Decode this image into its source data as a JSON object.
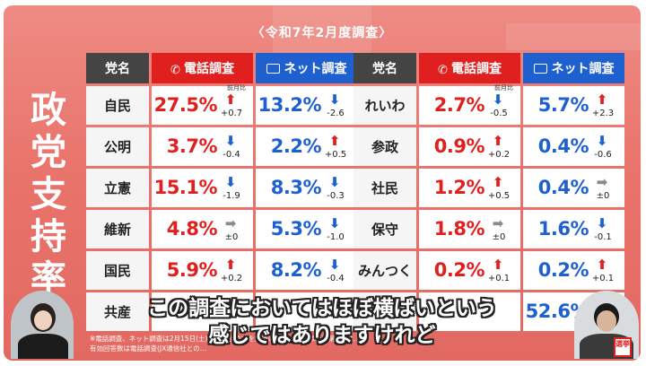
{
  "survey_date": "〈令和7年2月度調査〉",
  "vertical_title": [
    "政",
    "党",
    "支",
    "持",
    "率"
  ],
  "headers": {
    "party": "党名",
    "phone": "電話調査",
    "net": "ネット調査"
  },
  "icons": {
    "phone": "phone-icon",
    "net": "smartphone-icon",
    "up": "arrow-up-icon",
    "down": "arrow-down-icon",
    "flat": "arrow-right-icon"
  },
  "colors": {
    "phone": "#e0201f",
    "net": "#1f60d0",
    "flat": "#8a8a8a",
    "background": "#e9746c"
  },
  "prev_month_label": "前月比",
  "left_table": [
    {
      "party": "自民",
      "phone": {
        "value": "27.5%",
        "trend": "up",
        "change": "+0.7"
      },
      "net": {
        "value": "13.2%",
        "trend": "down",
        "change": "-2.6"
      }
    },
    {
      "party": "公明",
      "phone": {
        "value": "3.7%",
        "trend": "down",
        "change": "-0.4"
      },
      "net": {
        "value": "2.2%",
        "trend": "up",
        "change": "+0.5"
      }
    },
    {
      "party": "立憲",
      "phone": {
        "value": "15.1%",
        "trend": "down",
        "change": "-1.9"
      },
      "net": {
        "value": "8.3%",
        "trend": "down",
        "change": "-0.3"
      }
    },
    {
      "party": "維新",
      "phone": {
        "value": "4.8%",
        "trend": "flat",
        "change": "±0"
      },
      "net": {
        "value": "5.3%",
        "trend": "down",
        "change": "-1.0"
      }
    },
    {
      "party": "国民",
      "phone": {
        "value": "5.9%",
        "trend": "up",
        "change": "+0.2"
      },
      "net": {
        "value": "8.2%",
        "trend": "down",
        "change": "-0.4"
      }
    },
    {
      "party": "共産",
      "phone": {
        "value": "",
        "trend": "",
        "change": ""
      },
      "net": {
        "value": "",
        "trend": "",
        "change": ""
      }
    }
  ],
  "right_table": [
    {
      "party": "れいわ",
      "phone": {
        "value": "2.7%",
        "trend": "down",
        "change": "-0.5"
      },
      "net": {
        "value": "5.7%",
        "trend": "up",
        "change": "+2.3"
      }
    },
    {
      "party": "参政",
      "phone": {
        "value": "0.9%",
        "trend": "up",
        "change": "+0.2"
      },
      "net": {
        "value": "0.4%",
        "trend": "down",
        "change": "-0.6"
      }
    },
    {
      "party": "社民",
      "phone": {
        "value": "1.2%",
        "trend": "up",
        "change": "+0.5"
      },
      "net": {
        "value": "0.4%",
        "trend": "flat",
        "change": "±0"
      }
    },
    {
      "party": "保守",
      "phone": {
        "value": "1.8%",
        "trend": "flat",
        "change": "±0"
      },
      "net": {
        "value": "1.6%",
        "trend": "down",
        "change": "-0.1"
      }
    },
    {
      "party": "みんつく",
      "phone": {
        "value": "0.2%",
        "trend": "up",
        "change": "+0.1"
      },
      "net": {
        "value": "0.2%",
        "trend": "up",
        "change": "+0.1"
      }
    },
    {
      "party": "",
      "phone": {
        "value": "",
        "trend": "",
        "change": ""
      },
      "net": {
        "value": "52.6%",
        "trend": "",
        "change": ""
      }
    }
  ],
  "caption": [
    "この調査においてはほぼ横ばいという",
    "感じではありますけれど"
  ],
  "footnote": [
    "※電話調査、ネット調査は2月15日(土)・1… 上の方を対象に実施。数字は小数第2位は…",
    "有効回答数は電話調査(JX通信社との…"
  ],
  "logo_badge": "選挙"
}
